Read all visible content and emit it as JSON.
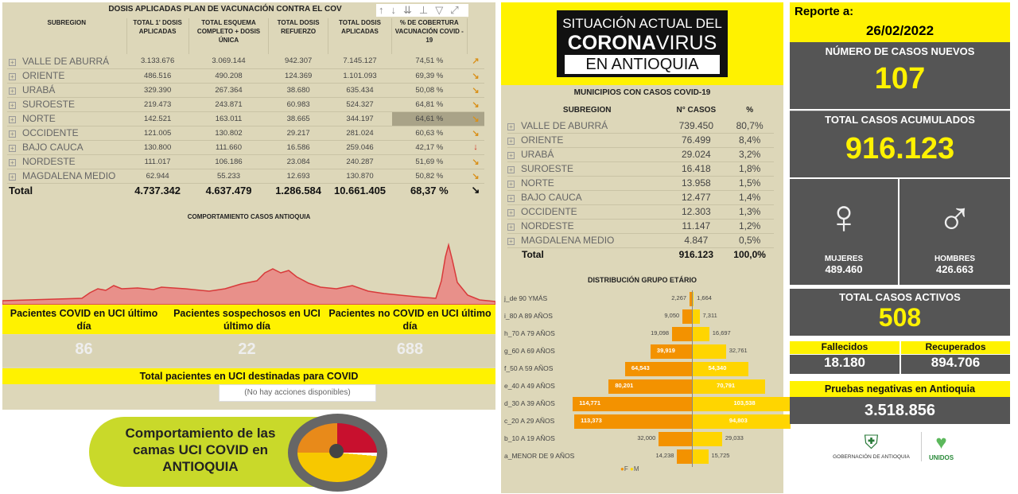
{
  "vaccination": {
    "title": "DOSIS APLICADAS PLAN DE VACUNACIÓN CONTRA EL COV",
    "headers": [
      "SUBREGION",
      "TOTAL 1' DOSIS APLICADAS",
      "TOTAL ESQUEMA COMPLETO + DOSIS ÚNICA",
      "TOTAL DOSIS REFUERZO",
      "TOTAL DOSIS APLICADAS",
      "% DE COBERTURA VACUNACIÓN COVID - 19"
    ],
    "rows": [
      {
        "name": "VALLE DE ABURRÁ",
        "d1": "3.133.676",
        "esq": "3.069.144",
        "ref": "942.307",
        "tot": "7.145.127",
        "pct": "74,51 %",
        "trend": "↗"
      },
      {
        "name": "ORIENTE",
        "d1": "486.516",
        "esq": "490.208",
        "ref": "124.369",
        "tot": "1.101.093",
        "pct": "69,39 %",
        "trend": "↘"
      },
      {
        "name": "URABÁ",
        "d1": "329.390",
        "esq": "267.364",
        "ref": "38.680",
        "tot": "635.434",
        "pct": "50,08 %",
        "trend": "↘"
      },
      {
        "name": "SUROESTE",
        "d1": "219.473",
        "esq": "243.871",
        "ref": "60.983",
        "tot": "524.327",
        "pct": "64,81 %",
        "trend": "↘"
      },
      {
        "name": "NORTE",
        "d1": "142.521",
        "esq": "163.011",
        "ref": "38.665",
        "tot": "344.197",
        "pct": "64,61 %",
        "trend": "↘"
      },
      {
        "name": "OCCIDENTE",
        "d1": "121.005",
        "esq": "130.802",
        "ref": "29.217",
        "tot": "281.024",
        "pct": "60,63 %",
        "trend": "↘"
      },
      {
        "name": "BAJO CAUCA",
        "d1": "130.800",
        "esq": "111.660",
        "ref": "16.586",
        "tot": "259.046",
        "pct": "42,17 %",
        "trend": "↓"
      },
      {
        "name": "NORDESTE",
        "d1": "111.017",
        "esq": "106.186",
        "ref": "23.084",
        "tot": "240.287",
        "pct": "51,69 %",
        "trend": "↘"
      },
      {
        "name": "MAGDALENA MEDIO",
        "d1": "62.944",
        "esq": "55.233",
        "ref": "12.693",
        "tot": "130.870",
        "pct": "50,82 %",
        "trend": "↘"
      }
    ],
    "total": {
      "name": "Total",
      "d1": "4.737.342",
      "esq": "4.637.479",
      "ref": "1.286.584",
      "tot": "10.661.405",
      "pct": "68,37 %",
      "trend": "↘"
    }
  },
  "cases_chart_title": "COMPORTAMIENTO CASOS ANTIOQUIA",
  "uci": {
    "labels": [
      "Pacientes COVID en UCI último día",
      "Pacientes sospechosos en UCI último día",
      "Pacientes no COVID en UCI último día"
    ],
    "values": [
      "86",
      "22",
      "688"
    ],
    "total_label": "Total pacientes en UCI destinadas para COVID",
    "no_actions": "(No hay acciones disponibles)"
  },
  "banner": {
    "text": "Comportamiento de las camas UCI COVID en ANTIOQUIA"
  },
  "header_logo": {
    "line1": "SITUACIÓN ACTUAL DEL",
    "line2a": "CORONA",
    "line2b": "VIRUS",
    "line3": "EN ANTIOQUIA"
  },
  "municipios": {
    "title": "MUNICIPIOS CON CASOS COVID-19",
    "headers": [
      "SUBREGION",
      "N° CASOS",
      "%"
    ],
    "rows": [
      [
        "VALLE DE ABURRÁ",
        "739.450",
        "80,7%"
      ],
      [
        "ORIENTE",
        "76.499",
        "8,4%"
      ],
      [
        "URABÁ",
        "29.024",
        "3,2%"
      ],
      [
        "SUROESTE",
        "16.418",
        "1,8%"
      ],
      [
        "NORTE",
        "13.958",
        "1,5%"
      ],
      [
        "BAJO CAUCA",
        "12.477",
        "1,4%"
      ],
      [
        "OCCIDENTE",
        "12.303",
        "1,3%"
      ],
      [
        "NORDESTE",
        "11.147",
        "1,2%"
      ],
      [
        "MAGDALENA MEDIO",
        "4.847",
        "0,5%"
      ]
    ],
    "total": [
      "Total",
      "916.123",
      "100,0%"
    ]
  },
  "chart_data": {
    "type": "bar",
    "title": "DISTRIBUCIÓN GRUPO ETÁRIO",
    "categories": [
      "j_de 90 YMÁS",
      "i_80 A 89 AÑOS",
      "h_70 A 79 AÑOS",
      "g_60 A 69 AÑOS",
      "f_50 A 59 AÑOS",
      "e_40 A 49 AÑOS",
      "d_30 A 39 AÑOS",
      "c_20 A 29 AÑOS",
      "b_10 A 19 AÑOS",
      "a_MENOR DE 9 AÑOS"
    ],
    "series": [
      {
        "name": "F",
        "color": "#f39200",
        "values": [
          2267,
          9050,
          19098,
          39919,
          64543,
          80201,
          114771,
          113373,
          32000,
          14238
        ],
        "labels": [
          "2,267",
          "9,050",
          "19,098",
          "39,919",
          "64,543",
          "80,201",
          "114,771",
          "113,373",
          "32,000",
          "14,238"
        ]
      },
      {
        "name": "M",
        "color": "#ffd500",
        "values": [
          1664,
          7311,
          16697,
          32761,
          54340,
          70791,
          103538,
          94803,
          29033,
          15725
        ],
        "labels": [
          "1,664",
          "7,311",
          "16,697",
          "32,761",
          "54,340",
          "70,791",
          "103,538",
          "94,803",
          "29,033",
          "15,725"
        ]
      }
    ],
    "legend": "bottom"
  },
  "report": {
    "label": "Reporte a:",
    "date": "26/02/2022",
    "new_cases_label": "NÚMERO DE CASOS NUEVOS",
    "new_cases": "107",
    "total_label": "TOTAL CASOS ACUMULADOS",
    "total": "916.123",
    "women_label": "MUJERES",
    "women": "489.460",
    "men_label": "HOMBRES",
    "men": "426.663",
    "active_label": "TOTAL CASOS ACTIVOS",
    "active": "508",
    "deaths_label": "Fallecidos",
    "deaths": "18.180",
    "recovered_label": "Recuperados",
    "recovered": "894.706",
    "neg_label": "Pruebas negativas en Antioquia",
    "neg": "3.518.856",
    "gov_logo": "GOBERNACIÓN DE ANTIOQUIA",
    "unidos_logo": "UNIDOS"
  }
}
